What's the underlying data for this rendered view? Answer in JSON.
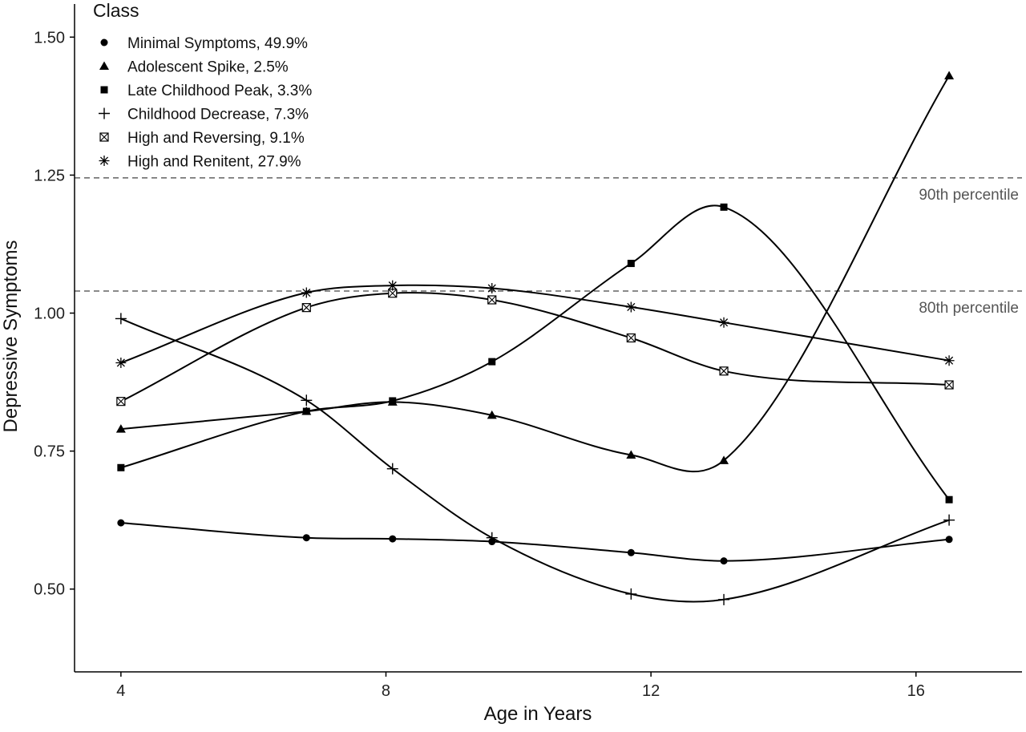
{
  "chart_data": {
    "type": "line",
    "xlabel": "Age in Years",
    "ylabel": "Depressive Symptoms",
    "xlim": [
      3.3,
      17.6
    ],
    "ylim": [
      0.35,
      1.56
    ],
    "x_ticks": [
      4,
      8,
      12,
      16
    ],
    "x_tick_labels": [
      "4",
      "8",
      "12",
      "16"
    ],
    "y_ticks": [
      0.5,
      0.75,
      1.0,
      1.25,
      1.5
    ],
    "y_tick_labels": [
      "0.50",
      "0.75",
      "1.00",
      "1.25",
      "1.50"
    ],
    "grid": false,
    "legend": {
      "title": "Class",
      "position": "top-left"
    },
    "x": [
      4.0,
      6.8,
      8.1,
      9.6,
      11.7,
      13.1,
      16.5
    ],
    "reference_lines": [
      {
        "label": "90th percentile",
        "y": 1.245
      },
      {
        "label": "80th percentile",
        "y": 1.04
      }
    ],
    "series": [
      {
        "name": "Minimal Symptoms, 49.9%",
        "marker": "circle",
        "values": [
          0.62,
          0.593,
          0.591,
          0.586,
          0.566,
          0.551,
          0.59
        ]
      },
      {
        "name": "Adolescent Spike, 2.5%",
        "marker": "triangle",
        "values": [
          0.79,
          0.822,
          0.839,
          0.815,
          0.743,
          0.733,
          1.43
        ]
      },
      {
        "name": "Late Childhood Peak, 3.3%",
        "marker": "square",
        "values": [
          0.72,
          0.822,
          0.841,
          0.912,
          1.09,
          1.192,
          0.662
        ]
      },
      {
        "name": "Childhood Decrease, 7.3%",
        "marker": "plus",
        "values": [
          0.99,
          0.842,
          0.718,
          0.593,
          0.491,
          0.481,
          0.625
        ]
      },
      {
        "name": "High and Reversing, 9.1%",
        "marker": "boxed-x",
        "values": [
          0.84,
          1.01,
          1.036,
          1.024,
          0.955,
          0.895,
          0.87
        ]
      },
      {
        "name": "High and Renitent, 27.9%",
        "marker": "asterisk",
        "values": [
          0.91,
          1.037,
          1.05,
          1.045,
          1.011,
          0.983,
          0.914
        ]
      }
    ]
  }
}
